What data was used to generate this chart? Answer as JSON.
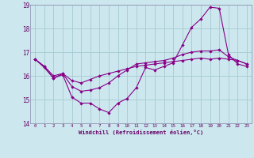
{
  "xlabel": "Windchill (Refroidissement éolien,°C)",
  "xlim": [
    -0.5,
    23.5
  ],
  "ylim": [
    14,
    19
  ],
  "yticks": [
    14,
    15,
    16,
    17,
    18,
    19
  ],
  "xticks": [
    0,
    1,
    2,
    3,
    4,
    5,
    6,
    7,
    8,
    9,
    10,
    11,
    12,
    13,
    14,
    15,
    16,
    17,
    18,
    19,
    20,
    21,
    22,
    23
  ],
  "bg_color": "#cce8ee",
  "grid_color": "#aacdd5",
  "line_color": "#880088",
  "line1_x": [
    0,
    1,
    2,
    3,
    4,
    5,
    6,
    7,
    8,
    9,
    10,
    11,
    12,
    13,
    14,
    15,
    16,
    17,
    18,
    19,
    20,
    21,
    22,
    23
  ],
  "line1_y": [
    16.7,
    16.4,
    15.9,
    16.1,
    15.55,
    15.35,
    15.4,
    15.5,
    15.7,
    16.0,
    16.25,
    16.5,
    16.55,
    16.6,
    16.65,
    16.75,
    16.9,
    17.0,
    17.05,
    17.05,
    17.1,
    16.8,
    16.65,
    16.5
  ],
  "line2_x": [
    0,
    1,
    2,
    3,
    4,
    5,
    6,
    7,
    8,
    9,
    10,
    11,
    12,
    13,
    14,
    15,
    16,
    17,
    18,
    19,
    20,
    21,
    22,
    23
  ],
  "line2_y": [
    16.7,
    16.4,
    16.0,
    16.1,
    15.8,
    15.7,
    15.85,
    16.0,
    16.1,
    16.2,
    16.3,
    16.4,
    16.45,
    16.5,
    16.55,
    16.6,
    16.65,
    16.7,
    16.75,
    16.7,
    16.75,
    16.7,
    16.65,
    16.5
  ],
  "line3_x": [
    0,
    1,
    2,
    3,
    4,
    5,
    6,
    7,
    8,
    9,
    10,
    11,
    12,
    13,
    14,
    15,
    16,
    17,
    18,
    19,
    20,
    21,
    22,
    23
  ],
  "line3_y": [
    16.7,
    16.35,
    15.9,
    16.05,
    15.1,
    14.85,
    14.85,
    14.6,
    14.45,
    14.85,
    15.05,
    15.5,
    16.35,
    16.25,
    16.4,
    16.55,
    17.3,
    18.05,
    18.4,
    18.9,
    18.85,
    16.9,
    16.5,
    16.4
  ]
}
